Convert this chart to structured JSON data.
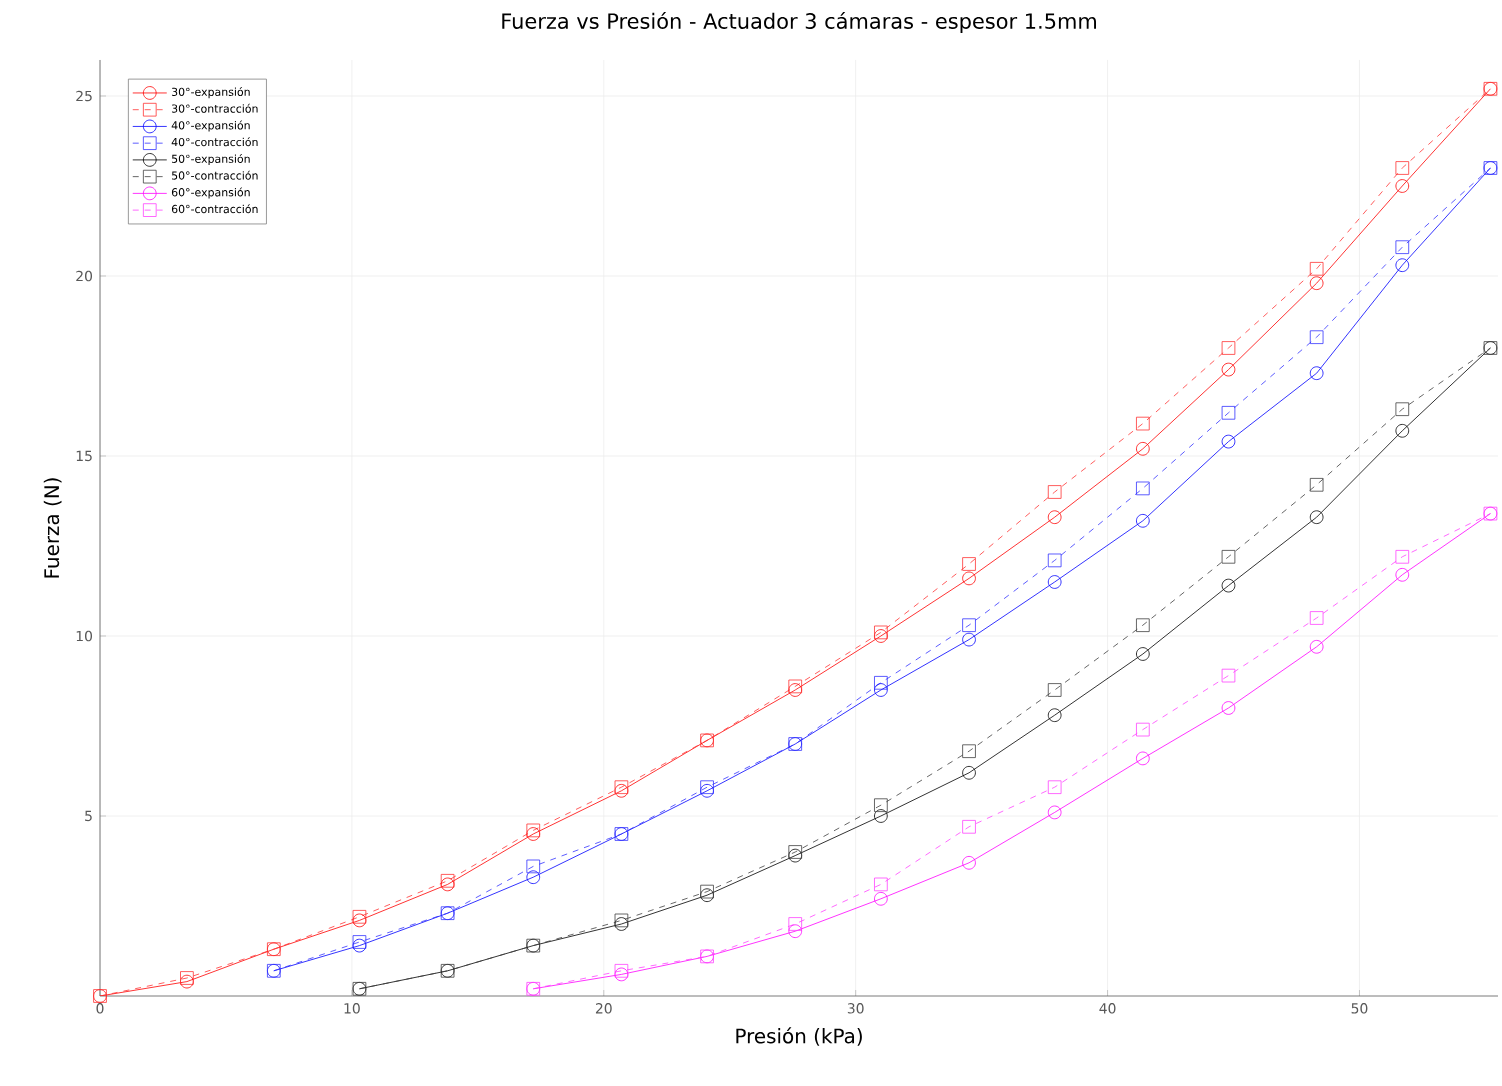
{
  "chart_data": {
    "type": "line",
    "title": "Fuerza vs Presión - Actuador 3 cámaras - espesor 1.5mm",
    "xlabel": "Presión (kPa)",
    "ylabel": "Fuerza (N)",
    "xlim": [
      0,
      55.5
    ],
    "ylim": [
      0,
      26
    ],
    "xticks": [
      0,
      10,
      20,
      30,
      40,
      50
    ],
    "yticks": [
      5,
      10,
      15,
      20,
      25
    ],
    "grid": true,
    "legend": "top left",
    "series": [
      {
        "name": "30°-expansión",
        "color": "#ff0000",
        "marker": "circle",
        "line_style": "solid",
        "x": [
          0,
          3.45,
          6.9,
          10.3,
          13.8,
          17.2,
          20.7,
          24.1,
          27.6,
          31,
          34.5,
          37.9,
          41.4,
          44.8,
          48.3,
          51.7,
          55.2
        ],
        "values": [
          0,
          0.4,
          1.3,
          2.1,
          3.1,
          4.5,
          5.7,
          7.1,
          8.5,
          10.0,
          11.6,
          13.3,
          15.2,
          17.4,
          19.8,
          22.5,
          25.2
        ]
      },
      {
        "name": "30°-contracción",
        "color": "#ff3333",
        "marker": "square",
        "line_style": "dashed",
        "x": [
          0,
          3.45,
          6.9,
          10.3,
          13.8,
          17.2,
          20.7,
          24.1,
          27.6,
          31,
          34.5,
          37.9,
          41.4,
          44.8,
          48.3,
          51.7,
          55.2
        ],
        "values": [
          0,
          0.5,
          1.3,
          2.2,
          3.2,
          4.6,
          5.8,
          7.1,
          8.6,
          10.1,
          12.0,
          14.0,
          15.9,
          18.0,
          20.2,
          23.0,
          25.2
        ]
      },
      {
        "name": "40°-expansión",
        "color": "#0000ff",
        "marker": "circle",
        "line_style": "solid",
        "x": [
          6.9,
          10.3,
          13.8,
          17.2,
          20.7,
          24.1,
          27.6,
          31,
          34.5,
          37.9,
          41.4,
          44.8,
          48.3,
          51.7,
          55.2
        ],
        "values": [
          0.7,
          1.4,
          2.3,
          3.3,
          4.5,
          5.7,
          7.0,
          8.5,
          9.9,
          11.5,
          13.2,
          15.4,
          17.3,
          20.3,
          23.0
        ]
      },
      {
        "name": "40°-contracción",
        "color": "#3333ff",
        "marker": "square",
        "line_style": "dashed",
        "x": [
          6.9,
          10.3,
          13.8,
          17.2,
          20.7,
          24.1,
          27.6,
          31,
          34.5,
          37.9,
          41.4,
          44.8,
          48.3,
          51.7,
          55.2
        ],
        "values": [
          0.7,
          1.5,
          2.3,
          3.6,
          4.5,
          5.8,
          7.0,
          8.7,
          10.3,
          12.1,
          14.1,
          16.2,
          18.3,
          20.8,
          23.0
        ]
      },
      {
        "name": "50°-expansión",
        "color": "#000000",
        "marker": "circle",
        "line_style": "solid",
        "x": [
          10.3,
          13.8,
          17.2,
          20.7,
          24.1,
          27.6,
          31,
          34.5,
          37.9,
          41.4,
          44.8,
          48.3,
          51.7,
          55.2
        ],
        "values": [
          0.2,
          0.7,
          1.4,
          2.0,
          2.8,
          3.9,
          5.0,
          6.2,
          7.8,
          9.5,
          11.4,
          13.3,
          15.7,
          18.0
        ]
      },
      {
        "name": "50°-contracción",
        "color": "#404040",
        "marker": "square",
        "line_style": "dashed",
        "x": [
          10.3,
          13.8,
          17.2,
          20.7,
          24.1,
          27.6,
          31,
          34.5,
          37.9,
          41.4,
          44.8,
          48.3,
          51.7,
          55.2
        ],
        "values": [
          0.2,
          0.7,
          1.4,
          2.1,
          2.9,
          4.0,
          5.3,
          6.8,
          8.5,
          10.3,
          12.2,
          14.2,
          16.3,
          18.0
        ]
      },
      {
        "name": "60°-expansión",
        "color": "#ff00ff",
        "marker": "circle",
        "line_style": "solid",
        "x": [
          17.2,
          20.7,
          24.1,
          27.6,
          31,
          34.5,
          37.9,
          41.4,
          44.8,
          48.3,
          51.7,
          55.2
        ],
        "values": [
          0.2,
          0.6,
          1.1,
          1.8,
          2.7,
          3.7,
          5.1,
          6.6,
          8.0,
          9.7,
          11.7,
          13.4
        ]
      },
      {
        "name": "60°-contracción",
        "color": "#ff44ff",
        "marker": "square",
        "line_style": "dashed",
        "x": [
          17.2,
          20.7,
          24.1,
          27.6,
          31,
          34.5,
          37.9,
          41.4,
          44.8,
          48.3,
          51.7,
          55.2
        ],
        "values": [
          0.2,
          0.7,
          1.1,
          2.0,
          3.1,
          4.7,
          5.8,
          7.4,
          8.9,
          10.5,
          12.2,
          13.4
        ]
      }
    ]
  }
}
